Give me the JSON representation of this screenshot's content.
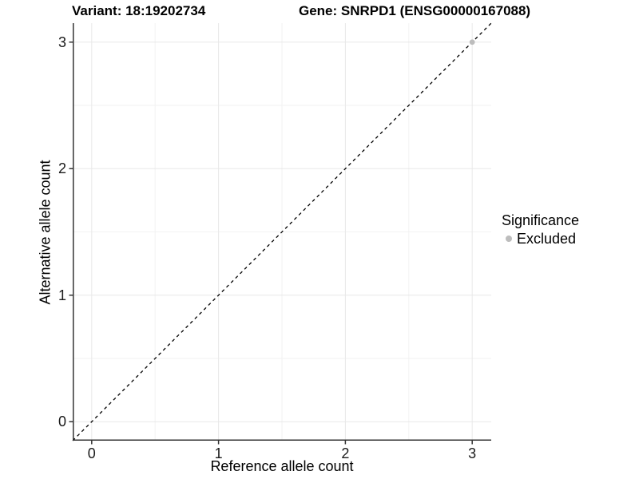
{
  "titles": {
    "variant": "Variant: 18:19202734",
    "gene": "Gene: SNRPD1 (ENSG00000167088)"
  },
  "chart_data": {
    "type": "scatter",
    "title_left": "Variant: 18:19202734",
    "title_right": "Gene: SNRPD1 (ENSG00000167088)",
    "xlabel": "Reference allele count",
    "ylabel": "Alternative allele count",
    "xlim": [
      -0.15,
      3.15
    ],
    "ylim": [
      -0.15,
      3.15
    ],
    "xticks": [
      0,
      1,
      2,
      3
    ],
    "yticks": [
      0,
      1,
      2,
      3
    ],
    "minor_xticks": [
      0.5,
      1.5,
      2.5
    ],
    "minor_yticks": [
      0.5,
      1.5,
      2.5
    ],
    "grid": "major-and-minor",
    "identity_line": {
      "type": "abline",
      "slope": 1,
      "intercept": 0,
      "style": "dashed",
      "color": "#000000"
    },
    "series": [
      {
        "name": "Excluded",
        "color": "#bdbdbd",
        "points": [
          {
            "x": 3,
            "y": 3
          }
        ]
      }
    ],
    "legend": {
      "title": "Significance",
      "position": "right",
      "items": [
        {
          "label": "Excluded",
          "color": "#bdbdbd"
        }
      ]
    },
    "style": {
      "axis_color": "#333333",
      "major_grid_color": "#e8e8e8",
      "minor_grid_color": "#f2f2f2",
      "panel_background": "#ffffff",
      "point_radius": 3.4
    }
  }
}
